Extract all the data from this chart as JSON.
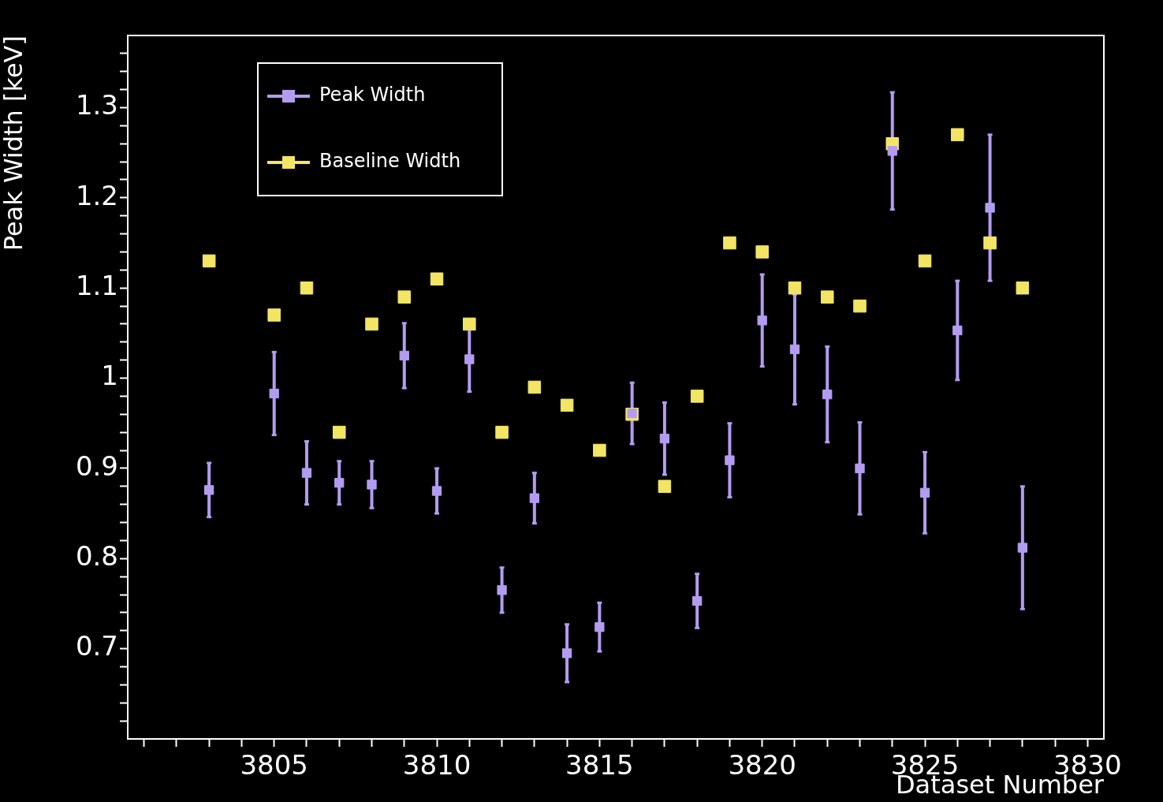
{
  "chart_data": {
    "type": "scatter",
    "xlabel": "Dataset Number",
    "ylabel": "Peak Width [keV]",
    "x": [
      3803,
      3805,
      3806,
      3807,
      3808,
      3809,
      3810,
      3811,
      3812,
      3813,
      3814,
      3815,
      3816,
      3817,
      3818,
      3819,
      3820,
      3821,
      3822,
      3823,
      3824,
      3825,
      3826,
      3827,
      3828
    ],
    "series": [
      {
        "name": "Peak Width",
        "color": "#b39cf0",
        "values": [
          0.876,
          0.983,
          0.895,
          0.884,
          0.882,
          1.025,
          0.875,
          1.021,
          0.765,
          0.867,
          0.695,
          0.724,
          0.961,
          0.933,
          0.753,
          0.909,
          1.064,
          1.032,
          0.982,
          0.9,
          1.252,
          0.873,
          1.053,
          1.189,
          0.812
        ],
        "errors": [
          0.03,
          0.046,
          0.035,
          0.024,
          0.026,
          0.036,
          0.025,
          0.036,
          0.025,
          0.028,
          0.032,
          0.027,
          0.034,
          0.04,
          0.03,
          0.041,
          0.051,
          0.061,
          0.053,
          0.051,
          0.065,
          0.045,
          0.055,
          0.081,
          0.068
        ]
      },
      {
        "name": "Baseline Width",
        "color": "#f3e564",
        "values": [
          1.13,
          1.07,
          1.1,
          0.94,
          1.06,
          1.09,
          1.11,
          1.06,
          0.94,
          0.99,
          0.97,
          0.92,
          0.96,
          0.88,
          0.98,
          1.15,
          1.14,
          1.1,
          1.09,
          1.08,
          1.26,
          1.13,
          1.27,
          1.15,
          1.1
        ]
      }
    ],
    "xlim": [
      3800.5,
      3830.5
    ],
    "xticks": [
      {
        "value": 3801,
        "label": null
      },
      {
        "value": 3802,
        "label": null
      },
      {
        "value": 3803,
        "label": null
      },
      {
        "value": 3804,
        "label": null
      },
      3805,
      {
        "value": 3806,
        "label": null
      },
      {
        "value": 3807,
        "label": null
      },
      {
        "value": 3808,
        "label": null
      },
      {
        "value": 3809,
        "label": null
      },
      3810,
      {
        "value": 3811,
        "label": null
      },
      {
        "value": 3812,
        "label": null
      },
      {
        "value": 3813,
        "label": null
      },
      {
        "value": 3814,
        "label": null
      },
      3815,
      {
        "value": 3816,
        "label": null
      },
      {
        "value": 3817,
        "label": null
      },
      {
        "value": 3818,
        "label": null
      },
      {
        "value": 3819,
        "label": null
      },
      3820,
      {
        "value": 3821,
        "label": null
      },
      {
        "value": 3822,
        "label": null
      },
      {
        "value": 3823,
        "label": null
      },
      {
        "value": 3824,
        "label": null
      },
      3825,
      {
        "value": 3826,
        "label": null
      },
      {
        "value": 3827,
        "label": null
      },
      {
        "value": 3828,
        "label": null
      },
      {
        "value": 3829,
        "label": null
      },
      3830
    ],
    "ylim": [
      0.6,
      1.38
    ],
    "yticks": [
      {
        "value": 0.62,
        "label": null
      },
      {
        "value": 0.64,
        "label": null
      },
      {
        "value": 0.66,
        "label": null
      },
      {
        "value": 0.68,
        "label": null
      },
      0.7,
      {
        "value": 0.72,
        "label": null
      },
      {
        "value": 0.74,
        "label": null
      },
      {
        "value": 0.76,
        "label": null
      },
      {
        "value": 0.78,
        "label": null
      },
      0.8,
      {
        "value": 0.82,
        "label": null
      },
      {
        "value": 0.84,
        "label": null
      },
      {
        "value": 0.86,
        "label": null
      },
      {
        "value": 0.88,
        "label": null
      },
      0.9,
      {
        "value": 0.92,
        "label": null
      },
      {
        "value": 0.94,
        "label": null
      },
      {
        "value": 0.96,
        "label": null
      },
      {
        "value": 0.98,
        "label": null
      },
      {
        "value": 1,
        "label": "1"
      },
      {
        "value": 1.02,
        "label": null
      },
      {
        "value": 1.04,
        "label": null
      },
      {
        "value": 1.06,
        "label": null
      },
      {
        "value": 1.08,
        "label": null
      },
      1.1,
      {
        "value": 1.12,
        "label": null
      },
      {
        "value": 1.14,
        "label": null
      },
      {
        "value": 1.16,
        "label": null
      },
      {
        "value": 1.18,
        "label": null
      },
      1.2,
      {
        "value": 1.22,
        "label": null
      },
      {
        "value": 1.24,
        "label": null
      },
      {
        "value": 1.26,
        "label": null
      },
      {
        "value": 1.28,
        "label": null
      },
      1.3,
      {
        "value": 1.32,
        "label": null
      },
      {
        "value": 1.34,
        "label": null
      },
      {
        "value": 1.36,
        "label": null
      }
    ],
    "grid": false,
    "legend": "top left",
    "marker": "square"
  }
}
